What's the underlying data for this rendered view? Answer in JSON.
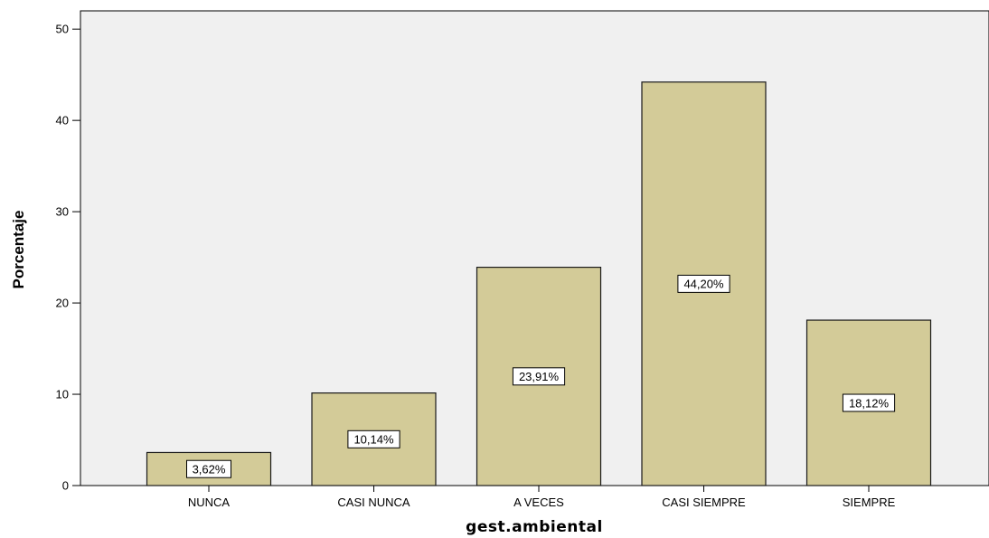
{
  "chart_data": {
    "type": "bar",
    "categories": [
      "NUNCA",
      "CASI NUNCA",
      "A VECES",
      "CASI SIEMPRE",
      "SIEMPRE"
    ],
    "values": [
      3.62,
      10.14,
      23.91,
      44.2,
      18.12
    ],
    "data_labels": [
      "3,62%",
      "10,14%",
      "23,91%",
      "44,20%",
      "18,12%"
    ],
    "title": "",
    "xlabel": "gest.ambiental",
    "ylabel": "Porcentaje",
    "ylim": [
      0,
      52
    ],
    "yticks": [
      0,
      10,
      20,
      30,
      40,
      50
    ],
    "grid": false,
    "colors": {
      "bar_fill": "#d3cb98",
      "bar_stroke": "#1a1a1a",
      "plot_background": "#f0f0f0",
      "label_box": "#ffffff"
    }
  }
}
